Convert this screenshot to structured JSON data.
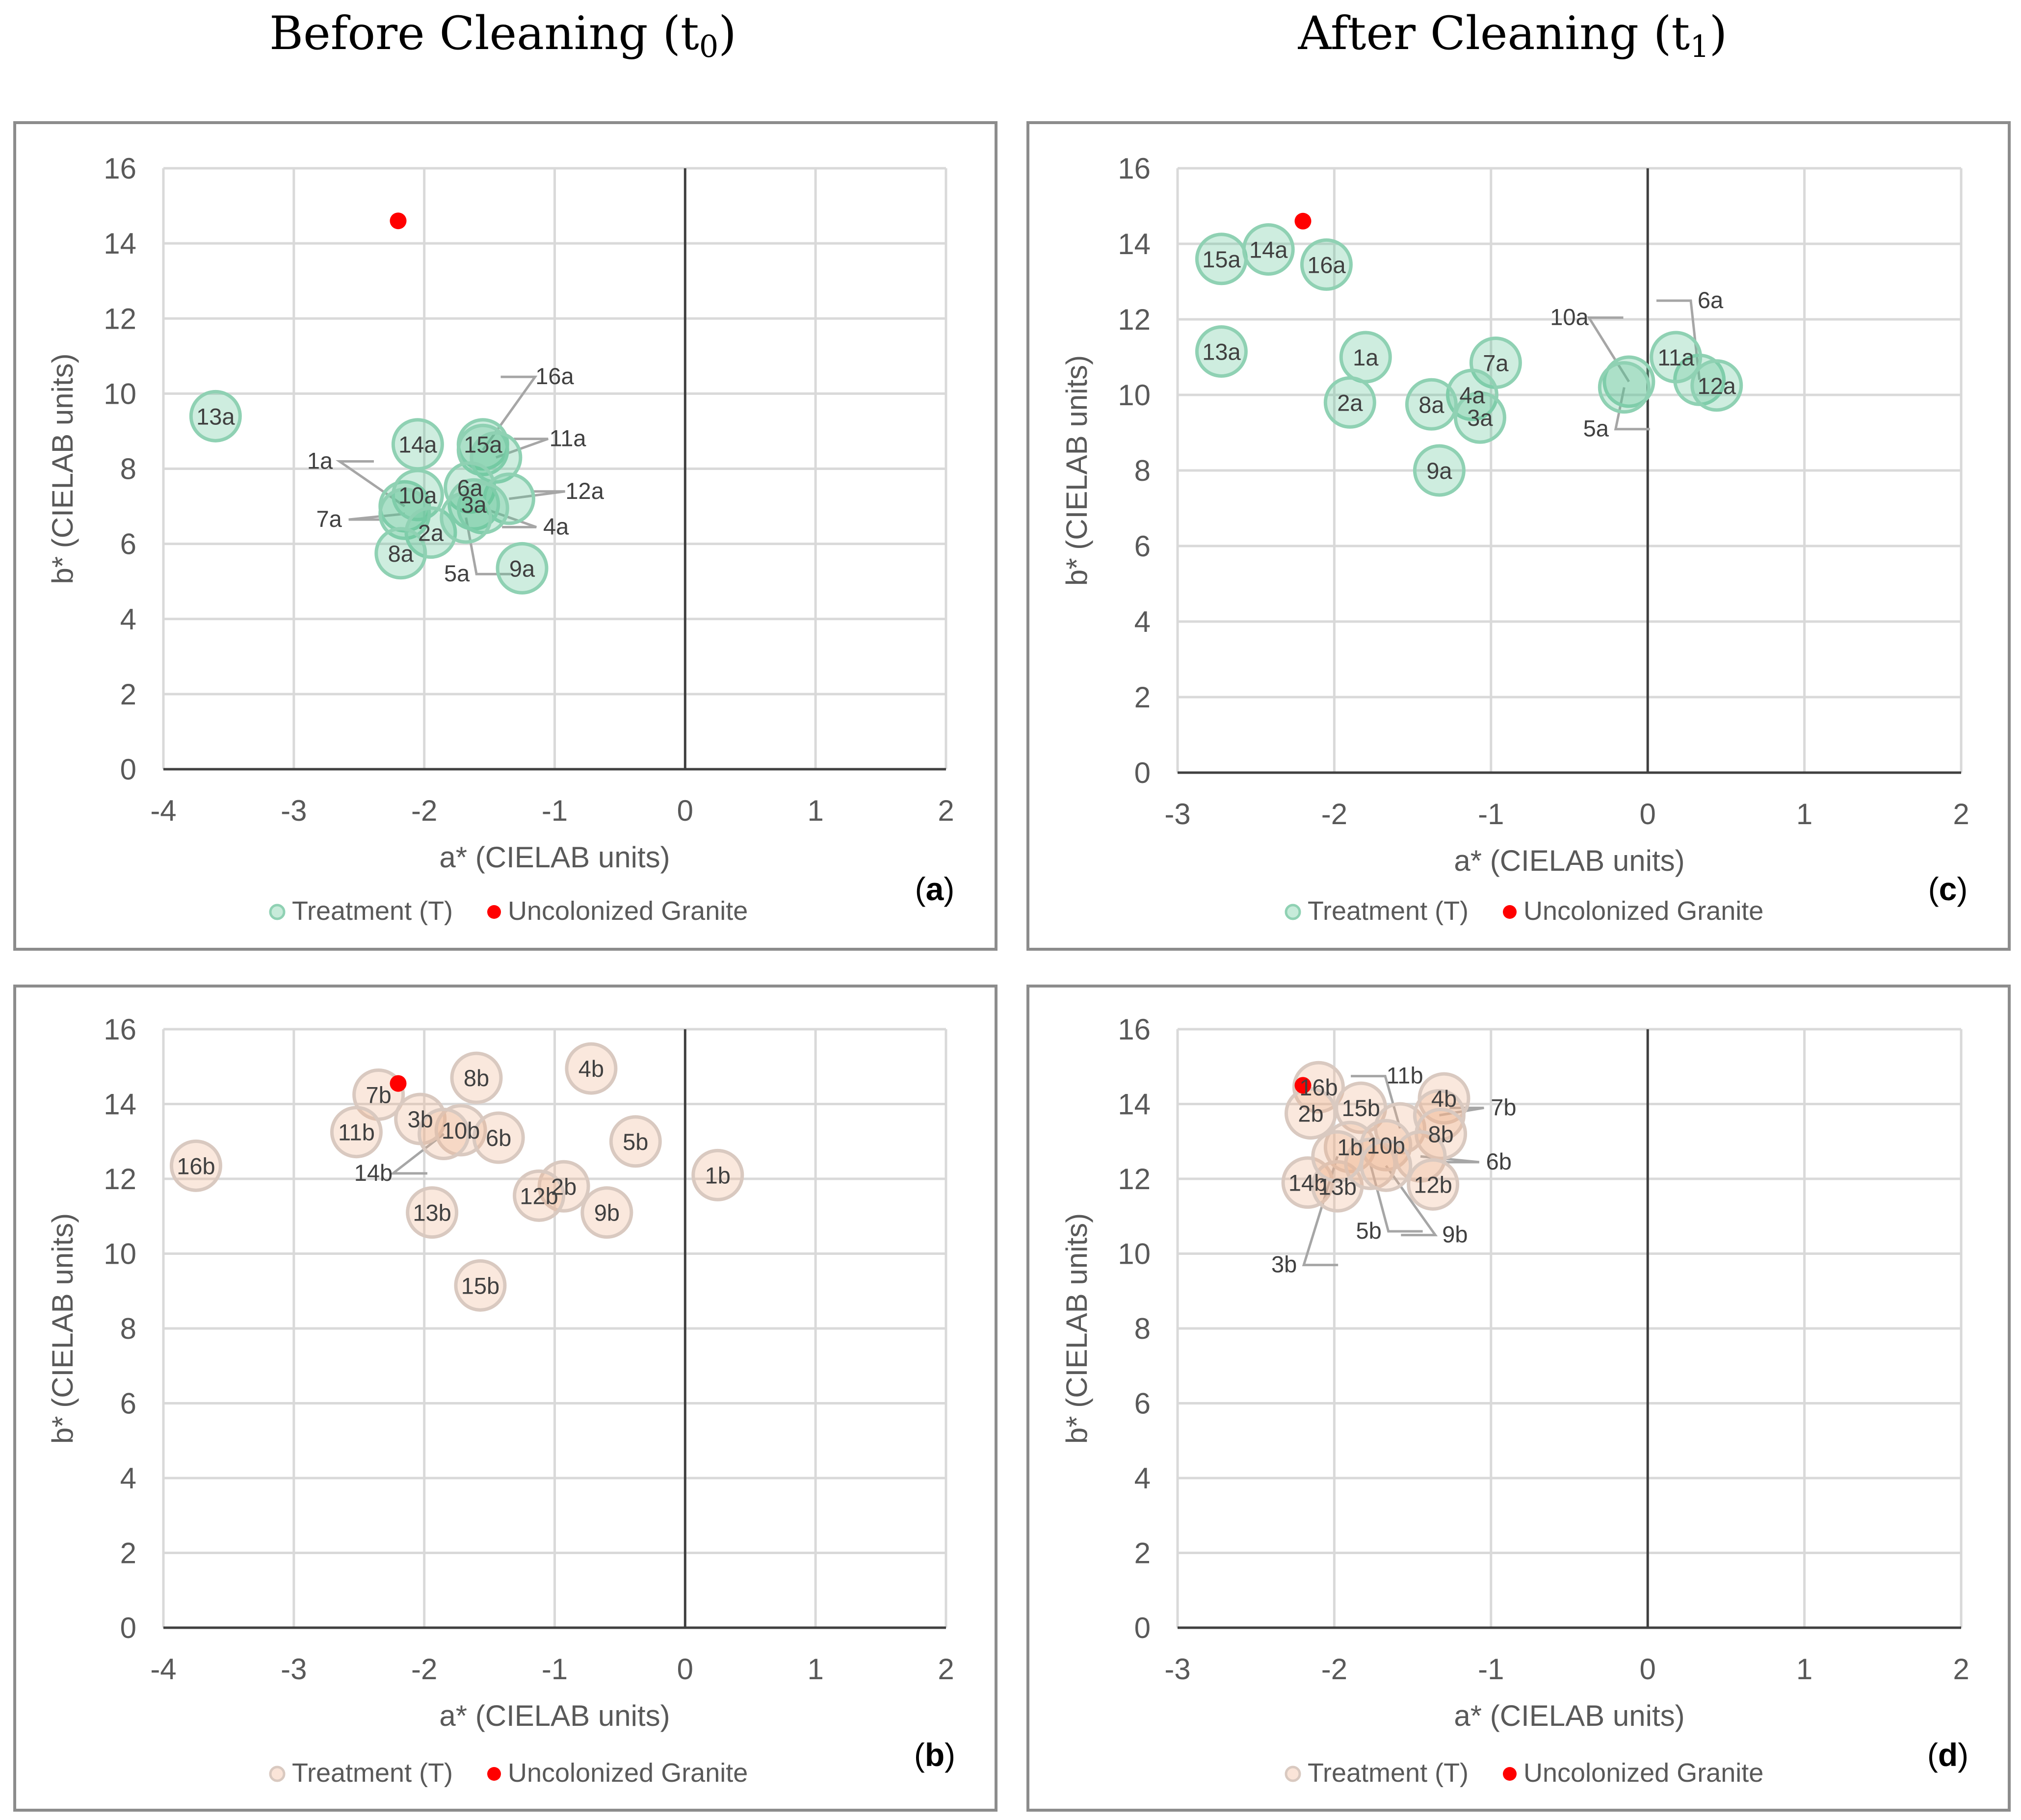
{
  "titles": {
    "left": {
      "main": "Before Cleaning (t",
      "sub": "0",
      "close": ")"
    },
    "right": {
      "main": "After Cleaning (t",
      "sub": "1",
      "close": ")"
    }
  },
  "legend": {
    "treatment": "Treatment (T)",
    "granite": "Uncolonized Granite"
  },
  "colors": {
    "green_fill": "#5ec596",
    "green_stroke": "#8fd1b3",
    "orange_fill": "#f0b38e",
    "orange_stroke": "#d9c9c0",
    "granite": "#ff0000"
  },
  "chart_data": [
    {
      "id": "a",
      "panel_label": "a",
      "type": "scatter",
      "theme": "green",
      "xlabel": "a* (CIELAB units)",
      "ylabel": "b* (CIELAB units)",
      "xlim": [
        -4,
        2
      ],
      "ylim": [
        0,
        16
      ],
      "xticks": [
        -4,
        -3,
        -2,
        -1,
        0,
        1,
        2
      ],
      "yticks": [
        0,
        2,
        4,
        6,
        8,
        10,
        12,
        14,
        16
      ],
      "granite": {
        "x": -2.2,
        "y": 14.6
      },
      "points": [
        {
          "label": "13a",
          "x": -3.6,
          "y": 9.4
        },
        {
          "label": "14a",
          "x": -2.05,
          "y": 8.65
        },
        {
          "label": "15a",
          "x": -1.55,
          "y": 8.65
        },
        {
          "label": "16a",
          "x": -1.55,
          "y": 8.5,
          "lx": -1.0,
          "ly": 10.25,
          "leader": true
        },
        {
          "label": "11a",
          "x": -1.45,
          "y": 8.3,
          "lx": -0.9,
          "ly": 8.6,
          "leader": true
        },
        {
          "label": "1a",
          "x": -2.15,
          "y": 7.0,
          "lx": -2.8,
          "ly": 8.0,
          "leader": true
        },
        {
          "label": "10a",
          "x": -2.05,
          "y": 7.3
        },
        {
          "label": "6a",
          "x": -1.65,
          "y": 7.5
        },
        {
          "label": "12a",
          "x": -1.35,
          "y": 7.2,
          "lx": -0.77,
          "ly": 7.2,
          "leader": true
        },
        {
          "label": "3a",
          "x": -1.62,
          "y": 7.05
        },
        {
          "label": "4a",
          "x": -1.55,
          "y": 6.95,
          "lx": -0.99,
          "ly": 6.25,
          "leader": true
        },
        {
          "label": "7a",
          "x": -2.15,
          "y": 6.8,
          "lx": -2.73,
          "ly": 6.45,
          "leader": true
        },
        {
          "label": "2a",
          "x": -1.95,
          "y": 6.3
        },
        {
          "label": "5a",
          "x": -1.68,
          "y": 6.7,
          "lx": -1.75,
          "ly": 5.0,
          "leader": true
        },
        {
          "label": "8a",
          "x": -2.18,
          "y": 5.75
        },
        {
          "label": "9a",
          "x": -1.25,
          "y": 5.35
        }
      ]
    },
    {
      "id": "b",
      "panel_label": "b",
      "type": "scatter",
      "theme": "orange",
      "xlabel": "a* (CIELAB units)",
      "ylabel": "b* (CIELAB units)",
      "xlim": [
        -4,
        2
      ],
      "ylim": [
        0,
        16
      ],
      "xticks": [
        -4,
        -3,
        -2,
        -1,
        0,
        1,
        2
      ],
      "yticks": [
        0,
        2,
        4,
        6,
        8,
        10,
        12,
        14,
        16
      ],
      "granite": {
        "x": -2.2,
        "y": 14.55
      },
      "points": [
        {
          "label": "16b",
          "x": -3.75,
          "y": 12.35
        },
        {
          "label": "7b",
          "x": -2.35,
          "y": 14.25
        },
        {
          "label": "8b",
          "x": -1.6,
          "y": 14.7
        },
        {
          "label": "4b",
          "x": -0.72,
          "y": 14.95
        },
        {
          "label": "11b",
          "x": -2.52,
          "y": 13.25
        },
        {
          "label": "3b",
          "x": -2.03,
          "y": 13.6
        },
        {
          "label": "10b",
          "x": -1.72,
          "y": 13.3
        },
        {
          "label": "6b",
          "x": -1.43,
          "y": 13.1
        },
        {
          "label": "5b",
          "x": -0.38,
          "y": 13.0
        },
        {
          "label": "1b",
          "x": 0.25,
          "y": 12.1
        },
        {
          "label": "14b",
          "x": -1.85,
          "y": 13.2,
          "lx": -2.39,
          "ly": 11.95,
          "leader": true
        },
        {
          "label": "2b",
          "x": -0.93,
          "y": 11.8
        },
        {
          "label": "12b",
          "x": -1.12,
          "y": 11.55
        },
        {
          "label": "9b",
          "x": -0.6,
          "y": 11.1
        },
        {
          "label": "13b",
          "x": -1.94,
          "y": 11.1
        },
        {
          "label": "15b",
          "x": -1.57,
          "y": 9.15
        }
      ]
    },
    {
      "id": "c",
      "panel_label": "c",
      "type": "scatter",
      "theme": "green",
      "xlabel": "a* (CIELAB units)",
      "ylabel": "b* (CIELAB units)",
      "xlim": [
        -3,
        2
      ],
      "ylim": [
        0,
        16
      ],
      "xticks": [
        -3,
        -2,
        -1,
        0,
        1,
        2
      ],
      "yticks": [
        0,
        2,
        4,
        6,
        8,
        10,
        12,
        14,
        16
      ],
      "granite": {
        "x": -2.2,
        "y": 14.6
      },
      "points": [
        {
          "label": "15a",
          "x": -2.72,
          "y": 13.6
        },
        {
          "label": "14a",
          "x": -2.42,
          "y": 13.85
        },
        {
          "label": "16a",
          "x": -2.05,
          "y": 13.45
        },
        {
          "label": "13a",
          "x": -2.72,
          "y": 11.15
        },
        {
          "label": "1a",
          "x": -1.8,
          "y": 11.0
        },
        {
          "label": "7a",
          "x": -0.97,
          "y": 10.85
        },
        {
          "label": "10a",
          "x": -0.12,
          "y": 10.35,
          "lx": -0.5,
          "ly": 11.85,
          "leader": true
        },
        {
          "label": "6a",
          "x": 0.33,
          "y": 10.4,
          "lx": 0.4,
          "ly": 12.3,
          "leader": true
        },
        {
          "label": "11a",
          "x": 0.18,
          "y": 11.0
        },
        {
          "label": "12a",
          "x": 0.44,
          "y": 10.25
        },
        {
          "label": "5a",
          "x": -0.15,
          "y": 10.2,
          "lx": -0.33,
          "ly": 8.9,
          "leader": true
        },
        {
          "label": "2a",
          "x": -1.9,
          "y": 9.8
        },
        {
          "label": "4a",
          "x": -1.12,
          "y": 10.0
        },
        {
          "label": "8a",
          "x": -1.38,
          "y": 9.75
        },
        {
          "label": "3a",
          "x": -1.07,
          "y": 9.4
        },
        {
          "label": "9a",
          "x": -1.33,
          "y": 8.0
        }
      ]
    },
    {
      "id": "d",
      "panel_label": "d",
      "type": "scatter",
      "theme": "orange",
      "xlabel": "a* (CIELAB units)",
      "ylabel": "b* (CIELAB units)",
      "xlim": [
        -3,
        2
      ],
      "ylim": [
        0,
        16
      ],
      "xticks": [
        -3,
        -2,
        -1,
        0,
        1,
        2
      ],
      "yticks": [
        0,
        2,
        4,
        6,
        8,
        10,
        12,
        14,
        16
      ],
      "granite": {
        "x": -2.2,
        "y": 14.5
      },
      "points": [
        {
          "label": "16b",
          "x": -2.1,
          "y": 14.45
        },
        {
          "label": "2b",
          "x": -2.15,
          "y": 13.75
        },
        {
          "label": "15b",
          "x": -1.83,
          "y": 13.9
        },
        {
          "label": "11b",
          "x": -1.58,
          "y": 13.35,
          "lx": -1.55,
          "ly": 14.55,
          "leader": true
        },
        {
          "label": "4b",
          "x": -1.3,
          "y": 14.15
        },
        {
          "label": "7b",
          "x": -1.33,
          "y": 13.7,
          "lx": -0.92,
          "ly": 13.7,
          "leader": true
        },
        {
          "label": "8b",
          "x": -1.32,
          "y": 13.2
        },
        {
          "label": "1b",
          "x": -1.9,
          "y": 12.85
        },
        {
          "label": "10b",
          "x": -1.67,
          "y": 12.9
        },
        {
          "label": "6b",
          "x": -1.45,
          "y": 12.6,
          "lx": -0.95,
          "ly": 12.25,
          "leader": true
        },
        {
          "label": "12b",
          "x": -1.37,
          "y": 11.85
        },
        {
          "label": "14b",
          "x": -2.17,
          "y": 11.9
        },
        {
          "label": "13b",
          "x": -1.98,
          "y": 11.8
        },
        {
          "label": "5b",
          "x": -1.77,
          "y": 12.4,
          "lx": -1.78,
          "ly": 10.4,
          "leader": true
        },
        {
          "label": "9b",
          "x": -1.67,
          "y": 12.35,
          "lx": -1.23,
          "ly": 10.3,
          "leader": true
        },
        {
          "label": "3b",
          "x": -1.98,
          "y": 12.6,
          "lx": -2.32,
          "ly": 9.5,
          "leader": true
        }
      ]
    }
  ]
}
